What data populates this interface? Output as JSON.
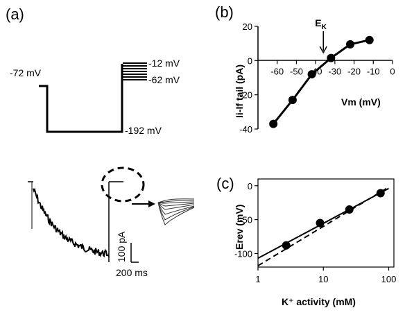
{
  "panels": {
    "a": "(a)",
    "b": "(b)",
    "c": "(c)"
  },
  "protocol": {
    "holding_label": "-72 mV",
    "step_label": "-192 mV",
    "test_top_label": "-12 mV",
    "test_bottom_label": "-62 mV",
    "scale_current": "100 pA",
    "scale_time": "200 ms"
  },
  "chart_data": [
    {
      "type": "line",
      "panel": "b",
      "xlabel": "Vm (mV)",
      "ylabel": "Ii-If tail (pA)",
      "xlim": [
        -70,
        0
      ],
      "ylim": [
        -40,
        20
      ],
      "xticks": [
        -60,
        -50,
        -40,
        -30,
        -20,
        -10,
        0
      ],
      "yticks": [
        20,
        0,
        -20,
        -40
      ],
      "xtick_labels": [
        "-60",
        "-50",
        "-40",
        "-30",
        "-20",
        "-10",
        "0"
      ],
      "ytick_labels": [
        "20",
        "0",
        "-20",
        "-40"
      ],
      "x": [
        -62,
        -52,
        -42,
        -32,
        -22,
        -12
      ],
      "y": [
        -37,
        -23,
        -8,
        1.5,
        9.5,
        12
      ],
      "annotation": {
        "text": "E",
        "subscript": "K",
        "x": -36
      },
      "grid": false
    },
    {
      "type": "scatter",
      "panel": "c",
      "xlabel": "K⁺ activity (mM)",
      "ylabel": "Erev (mV)",
      "xscale": "log",
      "xlim": [
        1,
        120
      ],
      "ylim": [
        -120,
        10
      ],
      "xticks": [
        1,
        10,
        100
      ],
      "yticks": [
        0,
        -50,
        -100
      ],
      "xtick_labels": [
        "1",
        "10",
        "100"
      ],
      "ytick_labels": [
        "0",
        "-50",
        "-100"
      ],
      "x": [
        2.7,
        8.9,
        25,
        75
      ],
      "y": [
        -88,
        -55,
        -35,
        -11
      ],
      "fit_solid": {
        "x": [
          1,
          100
        ],
        "y": [
          -107,
          -4
        ]
      },
      "fit_dashed": {
        "x": [
          1,
          100
        ],
        "y": [
          -118,
          -2
        ]
      },
      "grid": false
    }
  ]
}
